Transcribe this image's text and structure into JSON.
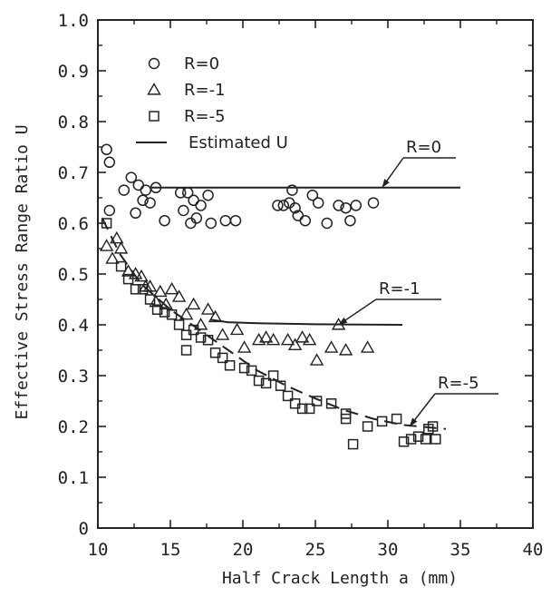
{
  "chart_data": {
    "type": "scatter",
    "xlabel": "Half Crack Length a (mm)",
    "ylabel": "Effective Stress Range Ratio U",
    "xlim": [
      10,
      40
    ],
    "ylim": [
      0,
      1.0
    ],
    "x_ticks": [
      "10",
      "15",
      "20",
      "25",
      "30",
      "35",
      "40"
    ],
    "y_ticks": [
      "0",
      "0.1",
      "0.2",
      "0.3",
      "0.4",
      "0.5",
      "0.6",
      "0.7",
      "0.8",
      "0.9",
      "1.0"
    ],
    "grid": false,
    "legend_position": "top-left",
    "legend": [
      {
        "label": "R=0",
        "marker": "circle"
      },
      {
        "label": "R=-1",
        "marker": "triangle"
      },
      {
        "label": "R=-5",
        "marker": "square"
      },
      {
        "label": "Estimated U",
        "marker": "line"
      }
    ],
    "series": [
      {
        "name": "R=0",
        "marker": "circle",
        "points": [
          [
            10.6,
            0.745
          ],
          [
            10.8,
            0.72
          ],
          [
            10.8,
            0.625
          ],
          [
            11.8,
            0.665
          ],
          [
            12.3,
            0.69
          ],
          [
            12.6,
            0.62
          ],
          [
            12.8,
            0.675
          ],
          [
            13.1,
            0.645
          ],
          [
            13.3,
            0.665
          ],
          [
            13.6,
            0.64
          ],
          [
            14,
            0.67
          ],
          [
            14.6,
            0.605
          ],
          [
            15.7,
            0.66
          ],
          [
            15.9,
            0.625
          ],
          [
            16.2,
            0.66
          ],
          [
            16.4,
            0.6
          ],
          [
            16.6,
            0.645
          ],
          [
            16.8,
            0.61
          ],
          [
            17.1,
            0.635
          ],
          [
            17.6,
            0.655
          ],
          [
            17.8,
            0.6
          ],
          [
            18.8,
            0.605
          ],
          [
            19.5,
            0.605
          ],
          [
            22.4,
            0.635
          ],
          [
            22.8,
            0.635
          ],
          [
            23.2,
            0.64
          ],
          [
            23.4,
            0.665
          ],
          [
            23.6,
            0.63
          ],
          [
            23.8,
            0.615
          ],
          [
            24.3,
            0.605
          ],
          [
            24.8,
            0.655
          ],
          [
            25.2,
            0.64
          ],
          [
            25.8,
            0.6
          ],
          [
            26.6,
            0.635
          ],
          [
            27.1,
            0.63
          ],
          [
            27.4,
            0.605
          ],
          [
            27.8,
            0.635
          ],
          [
            29,
            0.64
          ]
        ]
      },
      {
        "name": "R=-1",
        "marker": "triangle",
        "points": [
          [
            10.6,
            0.555
          ],
          [
            11,
            0.53
          ],
          [
            11.3,
            0.57
          ],
          [
            11.6,
            0.55
          ],
          [
            12.1,
            0.505
          ],
          [
            12.6,
            0.5
          ],
          [
            13,
            0.495
          ],
          [
            13.3,
            0.475
          ],
          [
            13.6,
            0.475
          ],
          [
            14,
            0.445
          ],
          [
            14.3,
            0.465
          ],
          [
            14.7,
            0.44
          ],
          [
            15.1,
            0.47
          ],
          [
            15.6,
            0.455
          ],
          [
            16.1,
            0.42
          ],
          [
            16.6,
            0.44
          ],
          [
            17.1,
            0.4
          ],
          [
            17.6,
            0.43
          ],
          [
            18.1,
            0.415
          ],
          [
            18.6,
            0.38
          ],
          [
            19.6,
            0.39
          ],
          [
            20.1,
            0.355
          ],
          [
            21.1,
            0.37
          ],
          [
            21.6,
            0.375
          ],
          [
            22.1,
            0.37
          ],
          [
            23.1,
            0.37
          ],
          [
            23.6,
            0.36
          ],
          [
            24.1,
            0.375
          ],
          [
            24.6,
            0.37
          ],
          [
            25.1,
            0.33
          ],
          [
            26.1,
            0.355
          ],
          [
            26.6,
            0.4
          ],
          [
            27.1,
            0.35
          ],
          [
            28.6,
            0.355
          ]
        ]
      },
      {
        "name": "R=-5",
        "marker": "square",
        "points": [
          [
            10.6,
            0.6
          ],
          [
            11.6,
            0.515
          ],
          [
            12.1,
            0.49
          ],
          [
            12.6,
            0.47
          ],
          [
            13.1,
            0.47
          ],
          [
            13.6,
            0.45
          ],
          [
            14.1,
            0.43
          ],
          [
            14.6,
            0.425
          ],
          [
            15.1,
            0.42
          ],
          [
            15.6,
            0.4
          ],
          [
            16.1,
            0.38
          ],
          [
            16.6,
            0.39
          ],
          [
            16.1,
            0.35
          ],
          [
            17.1,
            0.375
          ],
          [
            17.6,
            0.37
          ],
          [
            18.1,
            0.345
          ],
          [
            18.6,
            0.335
          ],
          [
            19.1,
            0.32
          ],
          [
            20.1,
            0.315
          ],
          [
            20.6,
            0.31
          ],
          [
            21.1,
            0.29
          ],
          [
            21.6,
            0.285
          ],
          [
            22.1,
            0.3
          ],
          [
            22.6,
            0.28
          ],
          [
            23.1,
            0.26
          ],
          [
            23.6,
            0.245
          ],
          [
            24.1,
            0.235
          ],
          [
            24.6,
            0.235
          ],
          [
            25.1,
            0.25
          ],
          [
            26.1,
            0.245
          ],
          [
            27.1,
            0.215
          ],
          [
            27.1,
            0.225
          ],
          [
            27.6,
            0.165
          ],
          [
            28.6,
            0.2
          ],
          [
            29.6,
            0.21
          ],
          [
            30.6,
            0.215
          ],
          [
            31.1,
            0.17
          ],
          [
            31.6,
            0.175
          ],
          [
            32.1,
            0.18
          ],
          [
            32.6,
            0.175
          ],
          [
            32.8,
            0.195
          ],
          [
            33.1,
            0.2
          ],
          [
            33.3,
            0.175
          ]
        ]
      }
    ],
    "estimated_curves": [
      {
        "name": "R=0",
        "style": "solid",
        "points": [
          [
            13.7,
            0.67
          ],
          [
            35,
            0.67
          ]
        ]
      },
      {
        "name": "R=-1",
        "style": "solid",
        "points": [
          [
            17.8,
            0.41
          ],
          [
            19,
            0.405
          ],
          [
            21,
            0.403
          ],
          [
            25,
            0.401
          ],
          [
            31,
            0.4
          ]
        ]
      },
      {
        "name": "R=-5",
        "style": "dashed",
        "points": [
          [
            10.3,
            0.61
          ],
          [
            11.5,
            0.54
          ],
          [
            13,
            0.48
          ],
          [
            15,
            0.43
          ],
          [
            17,
            0.39
          ],
          [
            19,
            0.35
          ],
          [
            21,
            0.31
          ],
          [
            23,
            0.28
          ],
          [
            25,
            0.255
          ],
          [
            27,
            0.232
          ],
          [
            29,
            0.215
          ],
          [
            31,
            0.203
          ],
          [
            34,
            0.195
          ]
        ]
      }
    ],
    "annotations": [
      {
        "text": "R=0",
        "points_to": [
          29.6,
          0.67
        ]
      },
      {
        "text": "R=-1",
        "points_to": [
          26.6,
          0.4
        ]
      },
      {
        "text": "R=-5",
        "points_to": [
          31.5,
          0.2
        ]
      }
    ]
  },
  "colors": {
    "ink": "#222222",
    "background": "#ffffff"
  }
}
